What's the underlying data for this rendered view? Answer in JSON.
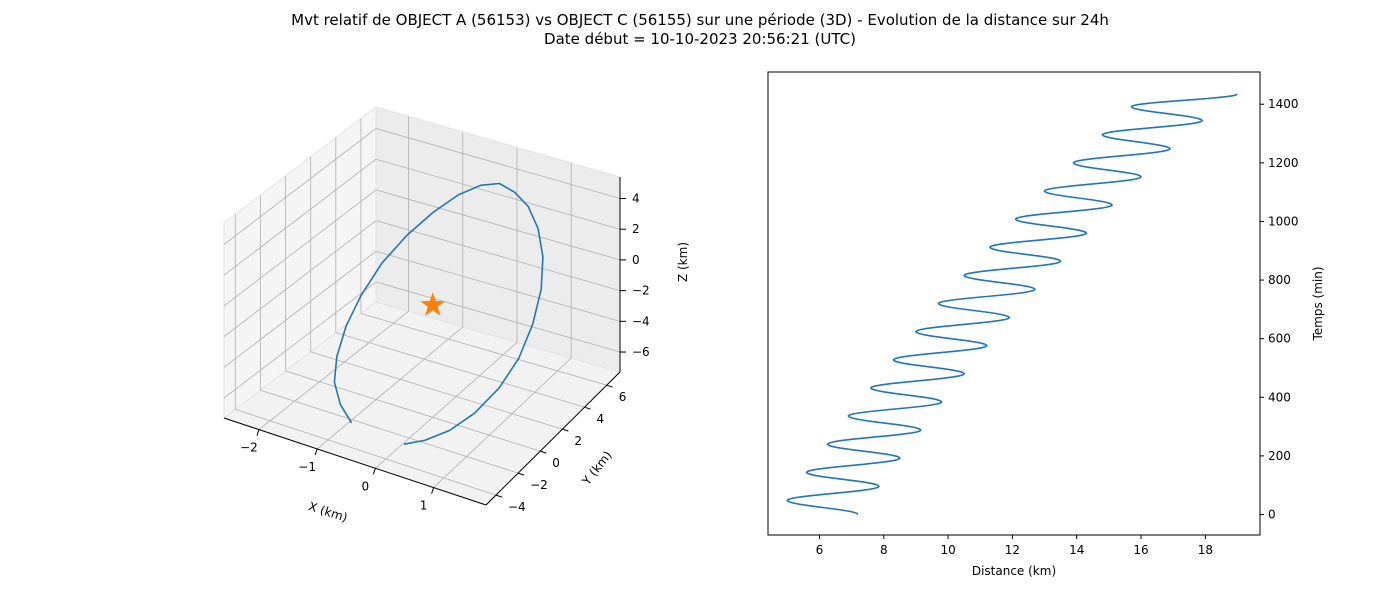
{
  "figure": {
    "title_line1": "Mvt relatif de OBJECT A (56153) vs OBJECT C (56155) sur une période (3D) - Evolution de la distance sur 24h",
    "title_line2": "Date début = 10-10-2023 20:56:21 (UTC)"
  },
  "colors": {
    "series": "#1f77b4",
    "marker": "#ff7f0e",
    "pane": "#f2f2f2",
    "grid": "#b0b0b0"
  },
  "chart_data": [
    {
      "type": "line",
      "projection": "3d",
      "xlabel": "X (km)",
      "ylabel": "Y (km)",
      "zlabel": "Z (km)",
      "xticks": [
        "−2",
        "−1",
        "0",
        "1"
      ],
      "yticks": [
        "−4",
        "−2",
        "0",
        "2",
        "4",
        "6"
      ],
      "zticks": [
        "−6",
        "−4",
        "−2",
        "0",
        "2",
        "4"
      ],
      "grid": true,
      "series": [
        {
          "x": [
            0.15,
            0.47,
            0.8,
            1.1,
            1.35,
            1.5,
            1.55,
            1.5,
            1.35,
            1.1,
            0.8,
            0.47,
            0.15,
            -0.15,
            -0.47,
            -0.8,
            -1.1,
            -1.35,
            -1.5,
            -1.55,
            -1.5,
            -1.35,
            -1.1,
            -0.8
          ],
          "y": [
            -3.2,
            -3.0,
            -2.5,
            -1.8,
            -0.9,
            0.1,
            1.1,
            2.1,
            3.0,
            3.8,
            4.4,
            4.8,
            5.0,
            4.8,
            4.4,
            3.8,
            3.0,
            2.1,
            1.1,
            0.1,
            -0.9,
            -1.8,
            -2.5,
            -3.0
          ],
          "z": [
            -6.7,
            -6.2,
            -5.5,
            -4.5,
            -3.2,
            -1.8,
            -0.2,
            1.3,
            2.6,
            3.6,
            4.3,
            4.6,
            4.7,
            4.4,
            3.7,
            2.6,
            1.3,
            -0.2,
            -1.8,
            -3.2,
            -4.5,
            -5.4,
            -6.1,
            -6.6
          ]
        }
      ],
      "marker_point": {
        "x": 0,
        "y": 0,
        "z": 0,
        "symbol": "star"
      }
    },
    {
      "type": "line",
      "xlabel": "Distance (km)",
      "ylabel": "Temps (min)",
      "xlim": [
        4.4,
        19.7
      ],
      "ylim": [
        -70,
        1510
      ],
      "xticks": [
        6,
        8,
        10,
        12,
        14,
        16,
        18
      ],
      "yticks": [
        0,
        200,
        400,
        600,
        800,
        1000,
        1200,
        1400
      ],
      "yaxis_position": "right",
      "grid": false,
      "series": [
        {
          "x": [
            7.2,
            5.0,
            7.85,
            5.6,
            8.5,
            6.25,
            9.15,
            6.9,
            9.8,
            7.6,
            10.5,
            8.3,
            11.2,
            9.0,
            11.9,
            9.7,
            12.7,
            10.5,
            13.5,
            11.3,
            14.3,
            12.1,
            15.1,
            13.0,
            16.0,
            13.9,
            16.9,
            14.8,
            17.9,
            15.7,
            19.0
          ],
          "y": [
            0,
            48,
            96,
            144,
            192,
            240,
            288,
            336,
            384,
            432,
            480,
            528,
            576,
            624,
            672,
            720,
            768,
            816,
            864,
            912,
            960,
            1008,
            1056,
            1104,
            1152,
            1200,
            1248,
            1296,
            1344,
            1392,
            1435
          ]
        }
      ]
    }
  ]
}
